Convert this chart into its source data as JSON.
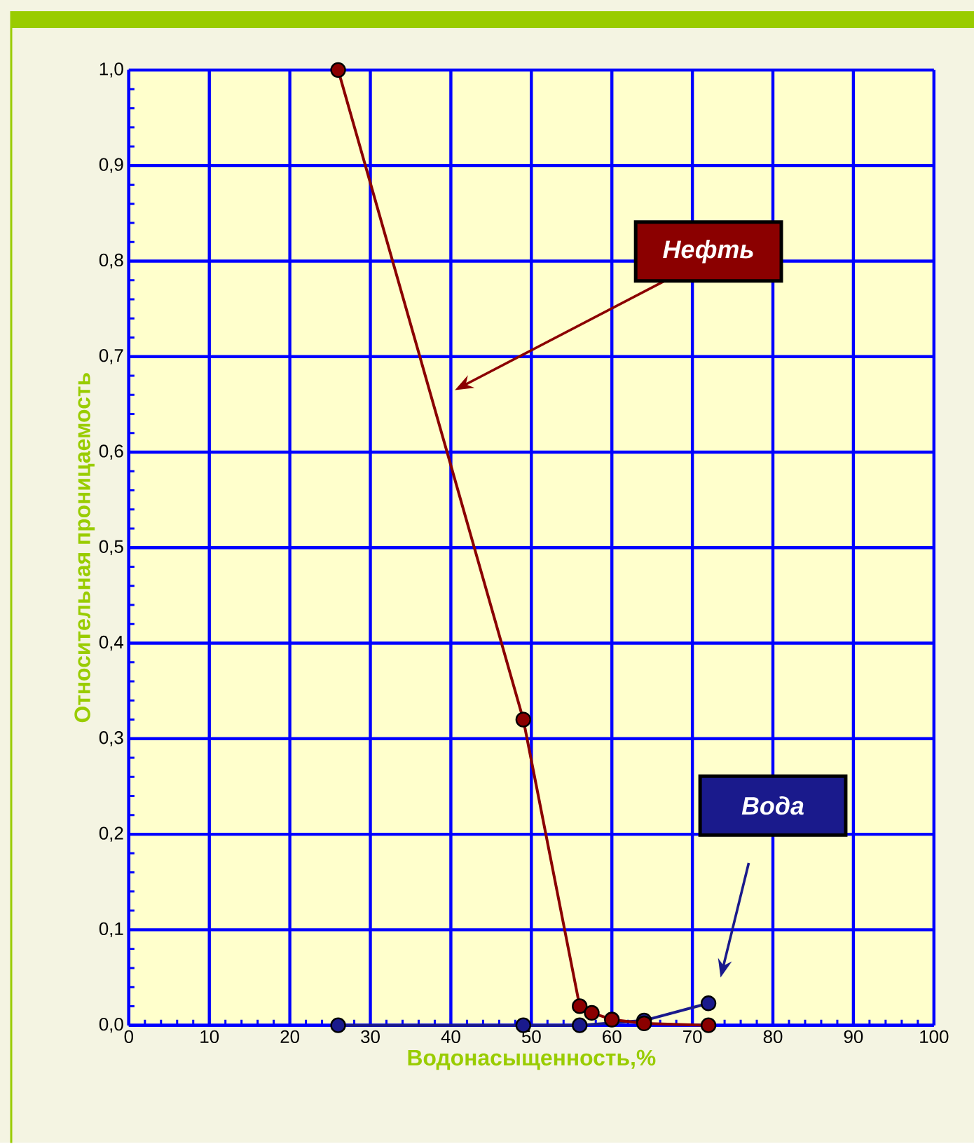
{
  "chart_data": {
    "type": "line",
    "xlabel": "Водонасыщенность,%",
    "ylabel": "Относительная проницаемость",
    "xlim": [
      0,
      100
    ],
    "ylim": [
      0,
      1
    ],
    "xticks": [
      0,
      10,
      20,
      30,
      40,
      50,
      60,
      70,
      80,
      90,
      100
    ],
    "yticks": [
      {
        "value": 0,
        "label": "0,0"
      },
      {
        "value": 0.1,
        "label": "0,1"
      },
      {
        "value": 0.2,
        "label": "0,2"
      },
      {
        "value": 0.3,
        "label": "0,3"
      },
      {
        "value": 0.4,
        "label": "0,4"
      },
      {
        "value": 0.5,
        "label": "0,5"
      },
      {
        "value": 0.6,
        "label": "0,6"
      },
      {
        "value": 0.7,
        "label": "0,7"
      },
      {
        "value": 0.8,
        "label": "0,8"
      },
      {
        "value": 0.9,
        "label": "0,9"
      },
      {
        "value": 1,
        "label": "1,0"
      }
    ],
    "grid": true,
    "marker": "circle",
    "line_style": "solid",
    "series": [
      {
        "name": "Нефть",
        "color": "#8b0000",
        "x": [
          26,
          49,
          56,
          57.5,
          60,
          64,
          72
        ],
        "values": [
          1.0,
          0.32,
          0.02,
          0.013,
          0.006,
          0.002,
          0.0
        ]
      },
      {
        "name": "Вода",
        "color": "#1a1a8c",
        "x": [
          26,
          49,
          56,
          64,
          72
        ],
        "values": [
          0.0,
          0.0,
          0.0,
          0.005,
          0.023
        ]
      }
    ]
  }
}
